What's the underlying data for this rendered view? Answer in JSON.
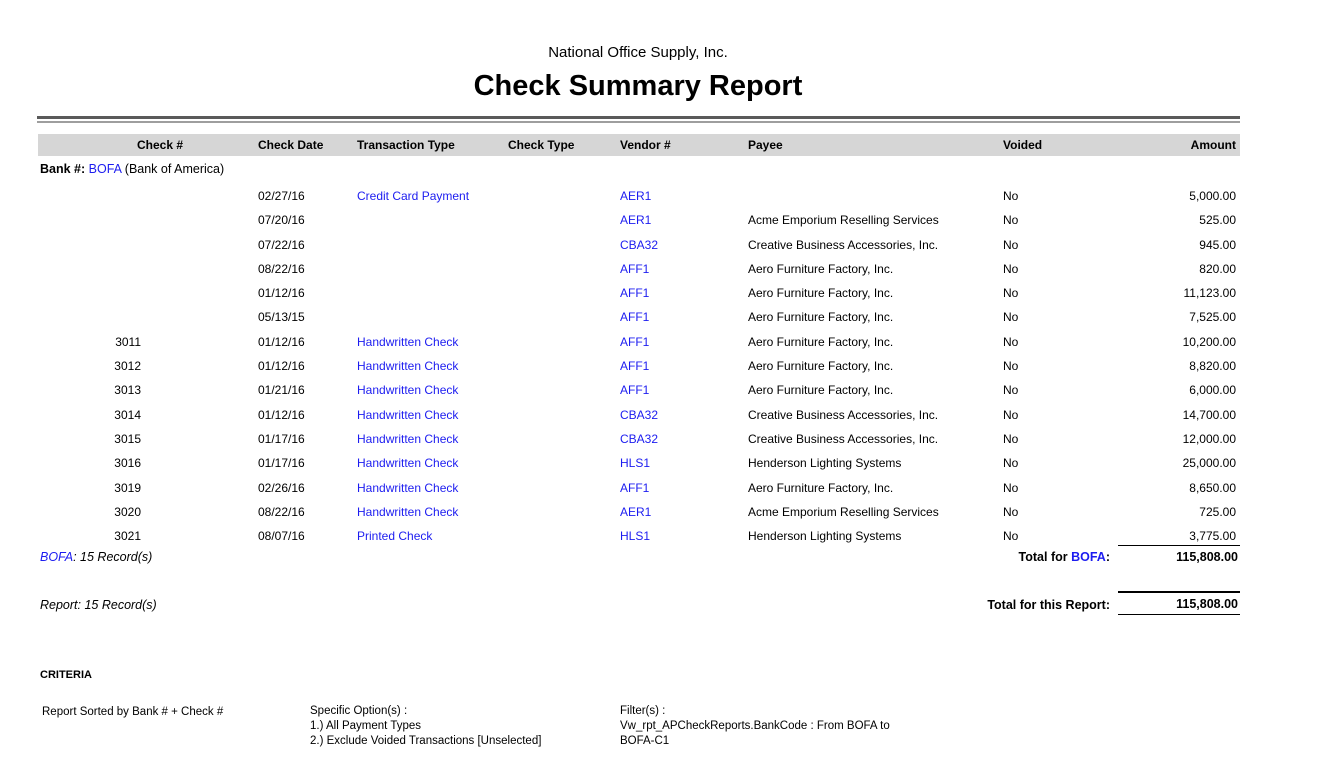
{
  "report": {
    "company": "National Office Supply, Inc.",
    "title": "Check Summary Report"
  },
  "table": {
    "columns": [
      "Check #",
      "Check Date",
      "Transaction Type",
      "Check Type",
      "Vendor #",
      "Payee",
      "Voided",
      "Amount"
    ],
    "group": {
      "label": "Bank #:",
      "bank_code": "BOFA",
      "bank_name": "(Bank of America)"
    },
    "rows": [
      {
        "check_no": "",
        "date": "02/27/16",
        "txn_type": "Credit Card Payment",
        "check_type": "",
        "vendor": "AER1",
        "payee": "",
        "voided": "No",
        "amount": "5,000.00"
      },
      {
        "check_no": "",
        "date": "07/20/16",
        "txn_type": "",
        "check_type": "",
        "vendor": "AER1",
        "payee": "Acme Emporium Reselling Services",
        "voided": "No",
        "amount": "525.00"
      },
      {
        "check_no": "",
        "date": "07/22/16",
        "txn_type": "",
        "check_type": "",
        "vendor": "CBA32",
        "payee": "Creative Business Accessories, Inc.",
        "voided": "No",
        "amount": "945.00"
      },
      {
        "check_no": "",
        "date": "08/22/16",
        "txn_type": "",
        "check_type": "",
        "vendor": "AFF1",
        "payee": "Aero Furniture Factory, Inc.",
        "voided": "No",
        "amount": "820.00"
      },
      {
        "check_no": "",
        "date": "01/12/16",
        "txn_type": "",
        "check_type": "",
        "vendor": "AFF1",
        "payee": "Aero Furniture Factory, Inc.",
        "voided": "No",
        "amount": "11,123.00"
      },
      {
        "check_no": "",
        "date": "05/13/15",
        "txn_type": "",
        "check_type": "",
        "vendor": "AFF1",
        "payee": "Aero Furniture Factory, Inc.",
        "voided": "No",
        "amount": "7,525.00"
      },
      {
        "check_no": "3011",
        "date": "01/12/16",
        "txn_type": "Handwritten Check",
        "check_type": "",
        "vendor": "AFF1",
        "payee": "Aero Furniture Factory, Inc.",
        "voided": "No",
        "amount": "10,200.00"
      },
      {
        "check_no": "3012",
        "date": "01/12/16",
        "txn_type": "Handwritten Check",
        "check_type": "",
        "vendor": "AFF1",
        "payee": "Aero Furniture Factory, Inc.",
        "voided": "No",
        "amount": "8,820.00"
      },
      {
        "check_no": "3013",
        "date": "01/21/16",
        "txn_type": "Handwritten Check",
        "check_type": "",
        "vendor": "AFF1",
        "payee": "Aero Furniture Factory, Inc.",
        "voided": "No",
        "amount": "6,000.00"
      },
      {
        "check_no": "3014",
        "date": "01/12/16",
        "txn_type": "Handwritten Check",
        "check_type": "",
        "vendor": "CBA32",
        "payee": "Creative Business Accessories, Inc.",
        "voided": "No",
        "amount": "14,700.00"
      },
      {
        "check_no": "3015",
        "date": "01/17/16",
        "txn_type": "Handwritten Check",
        "check_type": "",
        "vendor": "CBA32",
        "payee": "Creative Business Accessories, Inc.",
        "voided": "No",
        "amount": "12,000.00"
      },
      {
        "check_no": "3016",
        "date": "01/17/16",
        "txn_type": "Handwritten Check",
        "check_type": "",
        "vendor": "HLS1",
        "payee": "Henderson Lighting Systems",
        "voided": "No",
        "amount": "25,000.00"
      },
      {
        "check_no": "3019",
        "date": "02/26/16",
        "txn_type": "Handwritten Check",
        "check_type": "",
        "vendor": "AFF1",
        "payee": "Aero Furniture Factory, Inc.",
        "voided": "No",
        "amount": "8,650.00"
      },
      {
        "check_no": "3020",
        "date": "08/22/16",
        "txn_type": "Handwritten Check",
        "check_type": "",
        "vendor": "AER1",
        "payee": "Acme Emporium Reselling Services",
        "voided": "No",
        "amount": "725.00"
      },
      {
        "check_no": "3021",
        "date": "08/07/16",
        "txn_type": "Printed Check",
        "check_type": "",
        "vendor": "HLS1",
        "payee": "Henderson Lighting Systems",
        "voided": "No",
        "amount": "3,775.00"
      }
    ],
    "group_footer": {
      "records_code": "BOFA",
      "records_text": ": 15 Record(s)",
      "total_label_prefix": "Total for ",
      "total_label_code": "BOFA",
      "total_label_suffix": ":",
      "total_amount": "115,808.00"
    },
    "report_footer": {
      "records_text": "Report: 15 Record(s)",
      "total_label": "Total for this Report:",
      "total_amount": "115,808.00"
    }
  },
  "criteria": {
    "heading": "CRITERIA",
    "sort": "Report Sorted by Bank # + Check #",
    "options_heading": "Specific Option(s) :",
    "options": [
      "1.) All Payment Types",
      "2.) Exclude Voided Transactions [Unselected]"
    ],
    "filters_heading": "Filter(s) :",
    "filters": [
      "Vw_rpt_APCheckReports.BankCode :  From BOFA to",
      "BOFA-C1"
    ]
  },
  "colors": {
    "link_blue": "#1c1cf0",
    "header_bar_gray": "#d6d6d6"
  }
}
